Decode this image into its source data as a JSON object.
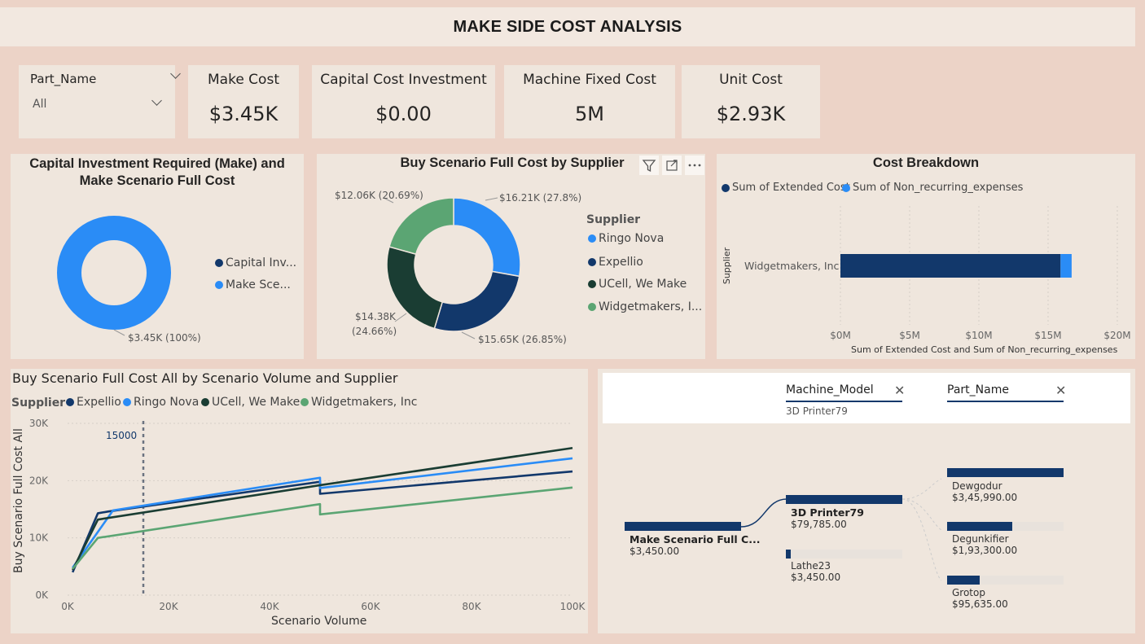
{
  "page_title": "MAKE SIDE COST ANALYSIS",
  "slicer": {
    "label": "Part_Name",
    "value": "All"
  },
  "cards": [
    {
      "label": "Make Cost",
      "value": "$3.45K"
    },
    {
      "label": "Capital Cost Investment",
      "value": "$0.00"
    },
    {
      "label": "Machine Fixed Cost",
      "value": "5M"
    },
    {
      "label": "Unit Cost",
      "value": "$2.93K"
    }
  ],
  "colors": {
    "darkblue": "#12386b",
    "blue": "#2a8cf6",
    "darkgreen": "#1a3d33",
    "green": "#5ba573"
  },
  "chart_data": [
    {
      "type": "pie",
      "title": "Capital Investment Required (Make) and Make Scenario Full Cost",
      "legend": [
        "Capital Inv...",
        "Make Sce..."
      ],
      "slices": [
        {
          "name": "Capital Investment",
          "value": 0,
          "color": "#12386b"
        },
        {
          "name": "Make Scenario Full Cost",
          "value": 3450,
          "color": "#2a8cf6"
        }
      ],
      "data_label": "$3.45K (100%)"
    },
    {
      "type": "pie",
      "title": "Buy Scenario Full Cost by Supplier",
      "legend_title": "Supplier",
      "legend": [
        "Ringo Nova",
        "Expellio",
        "UCell, We Make",
        "Widgetmakers, I..."
      ],
      "slices": [
        {
          "name": "Ringo Nova",
          "value": 16210,
          "color": "#2a8cf6",
          "label": "$16.21K (27.8%)"
        },
        {
          "name": "Expellio",
          "value": 15650,
          "color": "#12386b",
          "label": "$15.65K (26.85%)"
        },
        {
          "name": "UCell, We Make",
          "value": 14380,
          "color": "#1a3d33",
          "label_line1": "$14.38K",
          "label_line2": "(24.66%)"
        },
        {
          "name": "Widgetmakers, Inc",
          "value": 12060,
          "color": "#5ba573",
          "label": "$12.06K (20.69%)"
        }
      ]
    },
    {
      "type": "bar",
      "title": "Cost Breakdown",
      "legend": [
        "Sum of Extended Cost",
        "Sum of Non_recurring_expenses"
      ],
      "categories": [
        "Widgetmakers, Inc"
      ],
      "series": [
        {
          "name": "Sum of Extended Cost",
          "values": [
            15900000
          ],
          "color": "#12386b"
        },
        {
          "name": "Sum of Non_recurring_expenses",
          "values": [
            800000
          ],
          "color": "#2a8cf6"
        }
      ],
      "xlim": [
        0,
        20000000
      ],
      "ticks": [
        "$0M",
        "$5M",
        "$10M",
        "$15M",
        "$20M"
      ],
      "xlabel": "Sum of Extended Cost and Sum of Non_recurring_expenses",
      "ylabel": "Supplier"
    },
    {
      "type": "line",
      "title": "Buy Scenario Full Cost All by Scenario Volume and Supplier",
      "legend_title": "Supplier",
      "xlabel": "Scenario Volume",
      "ylabel": "Buy Scenario Full Cost All",
      "xlim": [
        0,
        100000
      ],
      "ylim": [
        0,
        30000
      ],
      "xticks": [
        "0K",
        "20K",
        "40K",
        "60K",
        "80K",
        "100K"
      ],
      "yticks": [
        "0K",
        "10K",
        "20K",
        "30K"
      ],
      "reference_line": {
        "x": 15000,
        "label": "15000"
      },
      "series": [
        {
          "name": "Expellio",
          "color": "#12386b",
          "points": [
            [
              1000,
              4000
            ],
            [
              6000,
              14300
            ],
            [
              8000,
              14600
            ],
            [
              50000,
              19800
            ],
            [
              50000,
              17700
            ],
            [
              100000,
              21600
            ]
          ]
        },
        {
          "name": "Ringo Nova",
          "color": "#2a8cf6",
          "points": [
            [
              1000,
              4800
            ],
            [
              9000,
              14800
            ],
            [
              50000,
              20500
            ],
            [
              50000,
              18700
            ],
            [
              100000,
              23900
            ]
          ]
        },
        {
          "name": "UCell, We Make",
          "color": "#1a3d33",
          "points": [
            [
              1000,
              4400
            ],
            [
              6000,
              13200
            ],
            [
              50000,
              19200
            ],
            [
              100000,
              25700
            ]
          ]
        },
        {
          "name": "Widgetmakers, Inc",
          "color": "#5ba573",
          "points": [
            [
              1000,
              4600
            ],
            [
              6000,
              10000
            ],
            [
              50000,
              15900
            ],
            [
              50000,
              14100
            ],
            [
              100000,
              18800
            ]
          ]
        }
      ]
    }
  ],
  "tree": {
    "filters": [
      {
        "label": "Machine_Model",
        "value": "3D Printer79"
      },
      {
        "label": "Part_Name",
        "value": ""
      }
    ],
    "root": {
      "label": "Make Scenario Full C...",
      "value": "$3,450.00",
      "fill": 1.0
    },
    "level1": [
      {
        "label": "3D Printer79",
        "value": "$79,785.00",
        "fill": 1.0
      },
      {
        "label": "Lathe23",
        "value": "$3,450.00",
        "fill": 0.04
      }
    ],
    "level2": [
      {
        "label": "Dewgodur",
        "value": "$3,45,990.00",
        "fill": 1.0
      },
      {
        "label": "Degunkifier",
        "value": "$1,93,300.00",
        "fill": 0.56
      },
      {
        "label": "Grotop",
        "value": "$95,635.00",
        "fill": 0.28
      }
    ]
  }
}
